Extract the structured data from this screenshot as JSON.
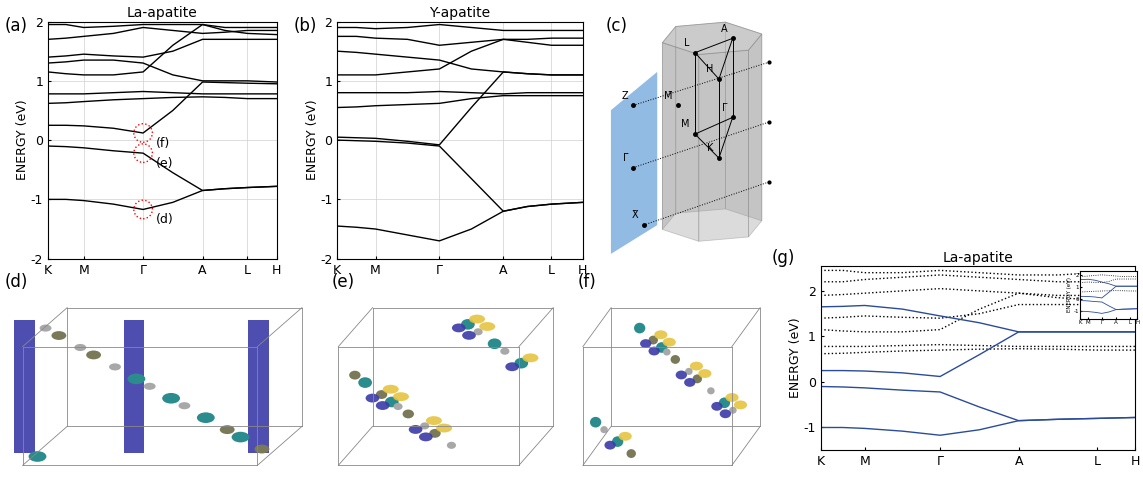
{
  "chart_data": [
    {
      "type": "line",
      "panel": "(a)",
      "title": "La-apatite",
      "y_label": "ENERGY (eV)",
      "color": "black",
      "grid": true,
      "x": [
        0,
        0.078,
        0.156,
        0.286,
        0.416,
        0.546,
        0.676,
        0.774,
        0.872,
        1.0
      ],
      "xlim": [
        0,
        1.0
      ],
      "xticks": [
        {
          "value": 0,
          "label": "K"
        },
        {
          "value": 0.156,
          "label": "M"
        },
        {
          "value": 0.416,
          "label": "Γ"
        },
        {
          "value": 0.676,
          "label": "A"
        },
        {
          "value": 0.872,
          "label": "L"
        },
        {
          "value": 1.0,
          "label": "H"
        }
      ],
      "ylim": [
        -2,
        2
      ],
      "yticks": [
        -2,
        -1,
        0,
        1,
        2
      ],
      "series": [
        {
          "values": [
            -1.0,
            -1.0,
            -1.02,
            -1.08,
            -1.17,
            -1.05,
            -0.85,
            -0.82,
            -0.8,
            -0.78
          ]
        },
        {
          "values": [
            -0.1,
            -0.11,
            -0.13,
            -0.18,
            -0.22,
            -0.55,
            -0.85,
            -0.82,
            -0.8,
            -0.78
          ]
        },
        {
          "values": [
            0.25,
            0.25,
            0.24,
            0.2,
            0.12,
            0.5,
            0.98,
            0.97,
            0.96,
            0.95
          ]
        },
        {
          "values": [
            0.62,
            0.63,
            0.65,
            0.68,
            0.7,
            0.72,
            0.73,
            0.72,
            0.7,
            0.7
          ]
        },
        {
          "values": [
            0.78,
            0.78,
            0.78,
            0.8,
            0.82,
            0.8,
            0.78,
            0.78,
            0.78,
            0.78
          ]
        },
        {
          "values": [
            1.15,
            1.12,
            1.1,
            1.1,
            1.15,
            1.6,
            1.95,
            1.85,
            1.8,
            1.78
          ]
        },
        {
          "values": [
            1.3,
            1.32,
            1.35,
            1.35,
            1.3,
            1.1,
            1.0,
            1.0,
            1.0,
            0.98
          ]
        },
        {
          "values": [
            1.4,
            1.42,
            1.45,
            1.42,
            1.4,
            1.5,
            1.7,
            1.7,
            1.7,
            1.7
          ]
        },
        {
          "values": [
            1.7,
            1.72,
            1.75,
            1.8,
            1.9,
            1.85,
            1.8,
            1.82,
            1.85,
            1.85
          ]
        },
        {
          "values": [
            1.95,
            1.95,
            1.9,
            1.92,
            1.95,
            1.95,
            1.95,
            1.9,
            1.9,
            1.9
          ]
        }
      ],
      "annotations": [
        {
          "text": "(f)",
          "x": 0.416,
          "y": 0.12
        },
        {
          "text": "(e)",
          "x": 0.416,
          "y": -0.22
        },
        {
          "text": "(d)",
          "x": 0.416,
          "y": -1.17
        }
      ]
    },
    {
      "type": "line",
      "panel": "(b)",
      "title": "Y-apatite",
      "y_label": "ENERGY (eV)",
      "color": "black",
      "grid": true,
      "x": [
        0,
        0.078,
        0.156,
        0.286,
        0.416,
        0.546,
        0.676,
        0.774,
        0.872,
        1.0
      ],
      "xlim": [
        0,
        1.0
      ],
      "xticks": [
        {
          "value": 0,
          "label": "K"
        },
        {
          "value": 0.156,
          "label": "M"
        },
        {
          "value": 0.416,
          "label": "Γ"
        },
        {
          "value": 0.676,
          "label": "A"
        },
        {
          "value": 0.872,
          "label": "L"
        },
        {
          "value": 1.0,
          "label": "H"
        }
      ],
      "ylim": [
        -2,
        2
      ],
      "yticks": [
        -2,
        -1,
        0,
        1,
        2
      ],
      "series": [
        {
          "values": [
            -1.45,
            -1.47,
            -1.5,
            -1.6,
            -1.7,
            -1.5,
            -1.2,
            -1.12,
            -1.08,
            -1.05
          ]
        },
        {
          "values": [
            0.0,
            -0.01,
            -0.02,
            -0.05,
            -0.1,
            -0.65,
            -1.2,
            -1.12,
            -1.08,
            -1.05
          ]
        },
        {
          "values": [
            0.05,
            0.04,
            0.03,
            -0.02,
            -0.08,
            0.55,
            1.15,
            1.12,
            1.1,
            1.1
          ]
        },
        {
          "values": [
            0.55,
            0.56,
            0.58,
            0.6,
            0.62,
            0.7,
            0.75,
            0.75,
            0.75,
            0.75
          ]
        },
        {
          "values": [
            0.8,
            0.8,
            0.8,
            0.8,
            0.82,
            0.8,
            0.78,
            0.8,
            0.8,
            0.8
          ]
        },
        {
          "values": [
            1.1,
            1.1,
            1.1,
            1.15,
            1.2,
            1.5,
            1.7,
            1.65,
            1.6,
            1.6
          ]
        },
        {
          "values": [
            1.5,
            1.48,
            1.45,
            1.4,
            1.35,
            1.2,
            1.15,
            1.12,
            1.1,
            1.1
          ]
        },
        {
          "values": [
            1.75,
            1.75,
            1.72,
            1.7,
            1.6,
            1.65,
            1.7,
            1.7,
            1.72,
            1.72
          ]
        },
        {
          "values": [
            1.9,
            1.9,
            1.88,
            1.9,
            1.95,
            1.9,
            1.85,
            1.85,
            1.85,
            1.85
          ]
        }
      ]
    },
    {
      "type": "line",
      "panel": "(g)",
      "title": "La-apatite",
      "y_label": "ENERGY (eV)",
      "grid": false,
      "x": [
        0,
        0.07,
        0.14,
        0.26,
        0.38,
        0.505,
        0.63,
        0.755,
        0.88,
        1.0
      ],
      "xlim": [
        0,
        1.0
      ],
      "xticks": [
        {
          "value": 0,
          "label": "K"
        },
        {
          "value": 0.14,
          "label": "M"
        },
        {
          "value": 0.38,
          "label": "Γ"
        },
        {
          "value": 0.63,
          "label": "A"
        },
        {
          "value": 0.88,
          "label": "L"
        },
        {
          "value": 1.0,
          "label": "H"
        }
      ],
      "ylim": [
        -1.5,
        2.55
      ],
      "yticks": [
        -1,
        0,
        1,
        2
      ],
      "series": [
        {
          "color": "black",
          "line_style": "dotted",
          "values": [
            0.62,
            0.63,
            0.65,
            0.68,
            0.7,
            0.72,
            0.73,
            0.72,
            0.7,
            0.7
          ]
        },
        {
          "color": "black",
          "line_style": "dotted",
          "values": [
            0.78,
            0.78,
            0.78,
            0.8,
            0.82,
            0.8,
            0.78,
            0.78,
            0.78,
            0.78
          ]
        },
        {
          "color": "black",
          "line_style": "dotted",
          "values": [
            1.15,
            1.12,
            1.1,
            1.1,
            1.15,
            1.6,
            1.95,
            1.85,
            1.8,
            1.78
          ]
        },
        {
          "color": "black",
          "line_style": "dotted",
          "values": [
            1.4,
            1.42,
            1.45,
            1.42,
            1.4,
            1.5,
            1.7,
            1.7,
            1.7,
            1.7
          ]
        },
        {
          "color": "black",
          "line_style": "dotted",
          "values": [
            1.9,
            1.92,
            1.95,
            2.0,
            2.05,
            2.0,
            1.95,
            1.9,
            1.9,
            1.9
          ]
        },
        {
          "color": "black",
          "line_style": "dotted",
          "values": [
            2.2,
            2.2,
            2.25,
            2.3,
            2.35,
            2.3,
            2.25,
            2.2,
            2.2,
            2.2
          ]
        },
        {
          "color": "black",
          "line_style": "dotted",
          "values": [
            2.45,
            2.45,
            2.4,
            2.4,
            2.45,
            2.4,
            2.35,
            2.35,
            2.4,
            2.4
          ]
        },
        {
          "color": "#2b4c9b",
          "line_style": "solid",
          "values": [
            -1.0,
            -1.0,
            -1.02,
            -1.08,
            -1.17,
            -1.05,
            -0.85,
            -0.82,
            -0.8,
            -0.78
          ]
        },
        {
          "color": "#2b4c9b",
          "line_style": "solid",
          "values": [
            -0.1,
            -0.11,
            -0.13,
            -0.18,
            -0.22,
            -0.55,
            -0.85,
            -0.82,
            -0.8,
            -0.78
          ]
        },
        {
          "color": "#2b4c9b",
          "line_style": "solid",
          "values": [
            0.25,
            0.25,
            0.24,
            0.2,
            0.12,
            0.6,
            1.1,
            1.1,
            1.1,
            1.1
          ]
        },
        {
          "color": "#2b4c9b",
          "line_style": "solid",
          "values": [
            1.65,
            1.66,
            1.68,
            1.6,
            1.45,
            1.3,
            1.1,
            1.1,
            1.1,
            1.1
          ]
        }
      ]
    },
    {
      "type": "line",
      "y_label": "ENERGY (eV)",
      "grid": false,
      "x": [
        0,
        0.07,
        0.14,
        0.26,
        0.38,
        0.505,
        0.63,
        0.755,
        0.88,
        1.0
      ],
      "xlim": [
        0,
        1.0
      ],
      "xticks": [
        {
          "value": 0,
          "label": "K"
        },
        {
          "value": 0.14,
          "label": "M"
        },
        {
          "value": 0.38,
          "label": "Γ"
        },
        {
          "value": 0.63,
          "label": "A"
        },
        {
          "value": 0.88,
          "label": "L"
        },
        {
          "value": 1.0,
          "label": "H"
        }
      ],
      "ylim": [
        -1.6,
        2.4
      ],
      "yticks": [
        -1,
        0,
        1,
        2
      ],
      "series": [
        {
          "color": "black",
          "line_style": "dotted",
          "values": [
            0.62,
            0.63,
            0.65,
            0.68,
            0.7,
            0.72,
            0.73,
            0.72,
            0.7,
            0.7
          ]
        },
        {
          "color": "black",
          "line_style": "dotted",
          "values": [
            1.4,
            1.42,
            1.45,
            1.42,
            1.4,
            1.5,
            1.7,
            1.7,
            1.7,
            1.7
          ]
        },
        {
          "color": "black",
          "line_style": "dotted",
          "values": [
            1.9,
            1.92,
            1.95,
            2.0,
            2.05,
            2.0,
            1.95,
            1.9,
            1.9,
            1.9
          ]
        },
        {
          "color": "#2b4c9b",
          "line_style": "solid",
          "values": [
            -1.0,
            -1.0,
            -1.02,
            -1.08,
            -1.17,
            -1.05,
            -0.85,
            -0.82,
            -0.8,
            -0.78
          ]
        },
        {
          "color": "#2b4c9b",
          "line_style": "solid",
          "values": [
            -0.1,
            -0.11,
            -0.13,
            -0.18,
            -0.22,
            -0.55,
            -0.85,
            -0.82,
            -0.8,
            -0.78
          ]
        },
        {
          "color": "#2b4c9b",
          "line_style": "solid",
          "values": [
            0.25,
            0.25,
            0.24,
            0.2,
            0.12,
            0.6,
            1.1,
            1.1,
            1.1,
            1.1
          ]
        },
        {
          "color": "#2b4c9b",
          "line_style": "solid",
          "values": [
            1.65,
            1.66,
            1.68,
            1.6,
            1.45,
            1.3,
            1.1,
            1.1,
            1.1,
            1.1
          ]
        }
      ]
    }
  ],
  "diagram": {
    "panel": "(c)",
    "labels": [
      "L",
      "A",
      "H",
      "M̄",
      "Γ",
      "M",
      "K",
      "Z̄",
      "Γ̄",
      "X̄"
    ]
  },
  "images": [
    {
      "panel": "(d)"
    },
    {
      "panel": "(e)"
    },
    {
      "panel": "(f)"
    }
  ]
}
